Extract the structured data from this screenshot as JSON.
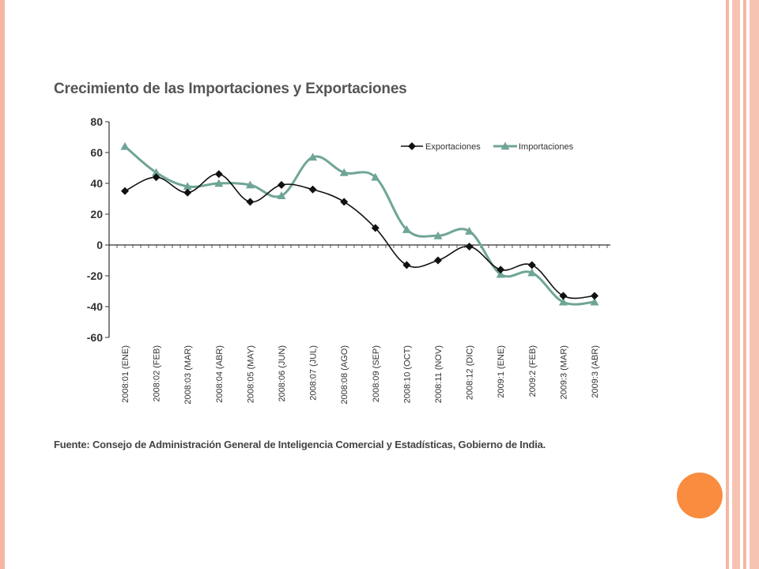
{
  "slide": {
    "accent_color": "#f98c3f",
    "border_color": "#f4b6a3"
  },
  "title": "Crecimiento de las Importaciones y Exportaciones",
  "source": "Fuente: Consejo de Administración General de Inteligencia Comercial y Estadísticas, Gobierno de India.",
  "chart_data": {
    "type": "line",
    "title": "Crecimiento de las Importaciones y Exportaciones",
    "xlabel": "",
    "ylabel": "",
    "ylim": [
      -60,
      80
    ],
    "yticks": [
      80,
      60,
      40,
      20,
      0,
      -20,
      -40,
      -60
    ],
    "grid": false,
    "legend_position": "top-right",
    "categories": [
      "2008:01 (ENE)",
      "2008:02 (FEB)",
      "2008:03 (MAR)",
      "2008:04 (ABR)",
      "2008:05 (MAY)",
      "2008:06 (JUN)",
      "2008:07 (JUL)",
      "2008:08 (AGO)",
      "2008:09 (SEP)",
      "2008:10 (OCT)",
      "2008:11 (NOV)",
      "2008:12 (DIC)",
      "2009:1 (ENE)",
      "2009:2 (FEB)",
      "2009:3 (MAR)",
      "2009:3 (ABR)"
    ],
    "series": [
      {
        "name": "Exportaciones",
        "color": "#111111",
        "marker": "diamond",
        "values": [
          35,
          44,
          34,
          46,
          28,
          39,
          36,
          28,
          11,
          -13,
          -10,
          -1,
          -16,
          -13,
          -33,
          -33
        ]
      },
      {
        "name": "Importaciones",
        "color": "#6fa597",
        "marker": "triangle",
        "values": [
          64,
          47,
          38,
          40,
          39,
          32,
          57,
          47,
          44,
          10,
          6,
          9,
          -19,
          -18,
          -37,
          -37
        ]
      }
    ]
  }
}
